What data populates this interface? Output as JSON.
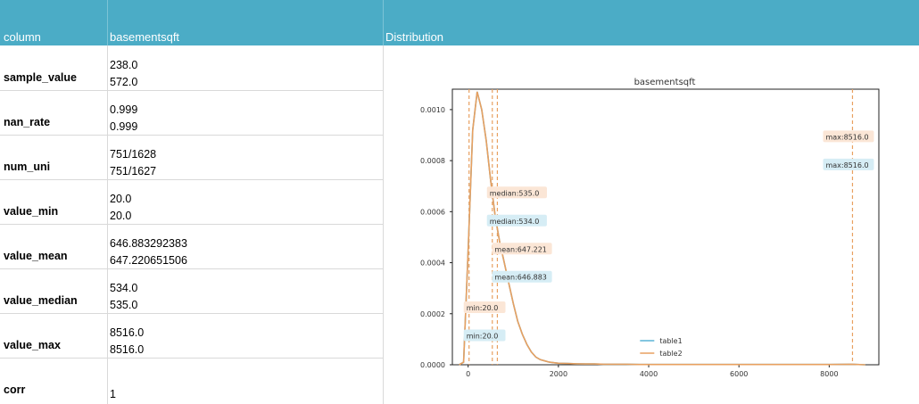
{
  "header": {
    "col1": "column",
    "col2": "basementsqft",
    "col3": "Distribution"
  },
  "rows": [
    {
      "label": "sample_value",
      "v1": "238.0",
      "v2": "572.0"
    },
    {
      "label": "nan_rate",
      "v1": "0.999",
      "v2": "0.999"
    },
    {
      "label": "num_uni",
      "v1": "751/1628",
      "v2": "751/1627"
    },
    {
      "label": "value_min",
      "v1": "20.0",
      "v2": "20.0"
    },
    {
      "label": "value_mean",
      "v1": "646.883292383",
      "v2": "647.220651506"
    },
    {
      "label": "value_median",
      "v1": "534.0",
      "v2": "535.0"
    },
    {
      "label": "value_max",
      "v1": "8516.0",
      "v2": "8516.0"
    },
    {
      "label": "corr",
      "v1": "",
      "v2": "1"
    }
  ],
  "colors": {
    "header": "#4bacc6",
    "table1": "#5ab4d6",
    "table2": "#e8a060",
    "table1_label_bg": "#d6edf5",
    "table2_label_bg": "#fbe6d6"
  },
  "chart_data": {
    "type": "line",
    "title": "basementsqft",
    "xlim": [
      -350,
      9100
    ],
    "ylim": [
      0,
      0.00108
    ],
    "xticks": [
      0,
      2000,
      4000,
      6000,
      8000
    ],
    "xtick_labels": [
      "0",
      "2000",
      "4000",
      "6000",
      "8000"
    ],
    "yticks": [
      0,
      0.0002,
      0.0004,
      0.0006,
      0.0008,
      0.001
    ],
    "ytick_labels": [
      "0.0000",
      "0.0002",
      "0.0004",
      "0.0006",
      "0.0008",
      "0.0010"
    ],
    "legend_position": "bottom-center",
    "series": [
      {
        "name": "table1",
        "x": [
          -200,
          -100,
          0,
          100,
          200,
          300,
          400,
          500,
          600,
          700,
          800,
          900,
          1000,
          1100,
          1200,
          1300,
          1400,
          1500,
          1600,
          1700,
          1800,
          1900,
          2000,
          2200,
          2400,
          2600,
          2800,
          3000,
          3200,
          3500,
          3800,
          4200,
          5000,
          6000,
          7000,
          8000,
          8500,
          8800
        ],
        "y": [
          0,
          1e-05,
          0.00045,
          0.00092,
          0.00107,
          0.001,
          0.00088,
          0.00072,
          0.00058,
          0.00048,
          0.0004,
          0.00032,
          0.00024,
          0.00017,
          0.00012,
          8e-05,
          5e-05,
          3e-05,
          2e-05,
          1.5e-05,
          1e-05,
          8e-06,
          6e-06,
          5e-06,
          4e-06,
          3e-06,
          3e-06,
          2e-06,
          2e-06,
          2e-06,
          1e-06,
          1e-06,
          1e-06,
          1e-06,
          1e-06,
          1e-06,
          2e-06,
          0
        ]
      },
      {
        "name": "table2",
        "x": [
          -200,
          -100,
          0,
          100,
          200,
          300,
          400,
          500,
          600,
          700,
          800,
          900,
          1000,
          1100,
          1200,
          1300,
          1400,
          1500,
          1600,
          1700,
          1800,
          1900,
          2000,
          2200,
          2400,
          2600,
          2800,
          3000,
          3200,
          3500,
          3800,
          4200,
          5000,
          6000,
          7000,
          8000,
          8500,
          8800
        ],
        "y": [
          0,
          1e-05,
          0.00045,
          0.00092,
          0.00107,
          0.001,
          0.00088,
          0.00072,
          0.00058,
          0.00048,
          0.0004,
          0.00032,
          0.00024,
          0.00017,
          0.00012,
          8e-05,
          5e-05,
          3e-05,
          2e-05,
          1.5e-05,
          1e-05,
          8e-06,
          6e-06,
          5e-06,
          4e-06,
          3e-06,
          3e-06,
          2e-06,
          2e-06,
          2e-06,
          1e-06,
          1e-06,
          1e-06,
          1e-06,
          1e-06,
          1e-06,
          2e-06,
          0
        ]
      }
    ],
    "annotations": [
      {
        "text": "max:8516.0",
        "x": 8516,
        "y": 0.00089,
        "series": "table2"
      },
      {
        "text": "max:8516.0",
        "x": 8516,
        "y": 0.00078,
        "series": "table1"
      },
      {
        "text": "median:535.0",
        "x": 535,
        "y": 0.00067,
        "series": "table2"
      },
      {
        "text": "median:534.0",
        "x": 534,
        "y": 0.00056,
        "series": "table1"
      },
      {
        "text": "mean:647.221",
        "x": 647,
        "y": 0.00045,
        "series": "table2"
      },
      {
        "text": "mean:646.883",
        "x": 647,
        "y": 0.00034,
        "series": "table1"
      },
      {
        "text": "min:20.0",
        "x": 20,
        "y": 0.00022,
        "series": "table2"
      },
      {
        "text": "min:20.0",
        "x": 20,
        "y": 0.00011,
        "series": "table1"
      }
    ],
    "vlines": [
      20,
      535,
      647,
      8516
    ]
  }
}
